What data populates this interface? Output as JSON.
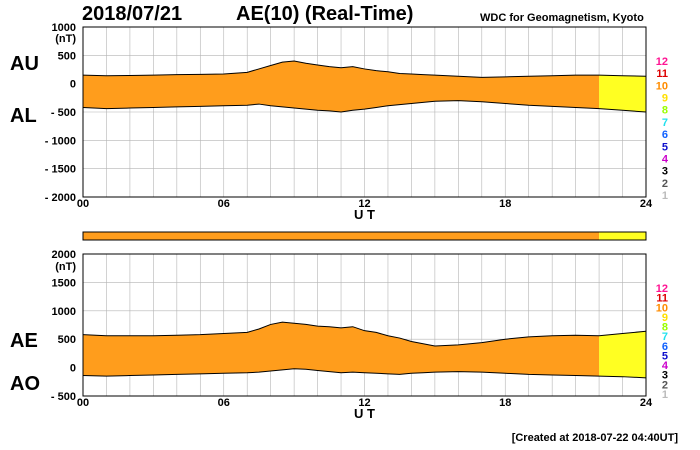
{
  "header": {
    "date": "2018/07/21",
    "title": "AE(10) (Real-Time)",
    "org": "WDC for Geomagnetism, Kyoto"
  },
  "footer": {
    "created": "[Created at 2018-07-22 04:40UT]"
  },
  "colors": {
    "orange": "#ff9d1c",
    "yellow": "#ffff22",
    "grid": "#b4b4b4",
    "frame": "#000000",
    "trace": "#000000"
  },
  "scale_legend": [
    {
      "label": "12",
      "color": "#ff1493"
    },
    {
      "label": "11",
      "color": "#dd0000"
    },
    {
      "label": "10",
      "color": "#ff8c00"
    },
    {
      "label": "9",
      "color": "#ffe000"
    },
    {
      "label": "8",
      "color": "#99ff00"
    },
    {
      "label": "7",
      "color": "#22e0ee"
    },
    {
      "label": "6",
      "color": "#1060ff"
    },
    {
      "label": "5",
      "color": "#1010cc"
    },
    {
      "label": "4",
      "color": "#cc00cc"
    },
    {
      "label": "3",
      "color": "#000000"
    },
    {
      "label": "2",
      "color": "#555555"
    },
    {
      "label": "1",
      "color": "#bbbbbb"
    }
  ],
  "chart_data": [
    {
      "type": "area",
      "panel": "top",
      "upper_label": "AU",
      "lower_label": "AL",
      "ylabel": "(nT)",
      "xlabel": "U T",
      "xlim": [
        0,
        24
      ],
      "ylim": [
        -2000,
        1000
      ],
      "xticks": [
        "00",
        "06",
        "12",
        "18",
        "24"
      ],
      "yticks": [
        "1000",
        "500",
        "0",
        "- 500",
        "- 1000",
        "- 1500",
        "- 2000"
      ],
      "grid": true,
      "x": [
        0,
        1,
        2,
        3,
        4,
        5,
        6,
        7,
        7.5,
        8,
        8.5,
        9,
        9.5,
        10,
        10.5,
        11,
        11.5,
        12,
        12.5,
        13,
        13.5,
        14,
        14.5,
        15,
        16,
        17,
        18,
        19,
        20,
        21,
        22,
        23,
        24
      ],
      "series": [
        {
          "name": "AU",
          "values": [
            150,
            140,
            145,
            150,
            160,
            165,
            170,
            200,
            260,
            320,
            380,
            400,
            360,
            330,
            300,
            280,
            300,
            260,
            230,
            210,
            180,
            170,
            160,
            150,
            130,
            110,
            120,
            130,
            140,
            150,
            150,
            140,
            130
          ]
        },
        {
          "name": "AL",
          "values": [
            -420,
            -440,
            -430,
            -420,
            -410,
            -400,
            -390,
            -380,
            -360,
            -390,
            -410,
            -430,
            -450,
            -470,
            -480,
            -500,
            -470,
            -450,
            -420,
            -390,
            -370,
            -350,
            -330,
            -310,
            -300,
            -320,
            -350,
            -380,
            -400,
            -420,
            -440,
            -470,
            -500
          ]
        }
      ],
      "forecast_from": 22
    },
    {
      "type": "area",
      "panel": "bottom",
      "upper_label": "AE",
      "lower_label": "AO",
      "ylabel": "(nT)",
      "xlabel": "U T",
      "xlim": [
        0,
        24
      ],
      "ylim": [
        -500,
        2000
      ],
      "xticks": [
        "00",
        "06",
        "12",
        "18",
        "24"
      ],
      "yticks": [
        "2000",
        "1500",
        "1000",
        "500",
        "0",
        "- 500"
      ],
      "grid": true,
      "x": [
        0,
        1,
        2,
        3,
        4,
        5,
        6,
        7,
        7.5,
        8,
        8.5,
        9,
        9.5,
        10,
        10.5,
        11,
        11.5,
        12,
        12.5,
        13,
        13.5,
        14,
        14.5,
        15,
        16,
        17,
        18,
        19,
        20,
        21,
        22,
        23,
        24
      ],
      "series": [
        {
          "name": "AE",
          "values": [
            580,
            560,
            560,
            560,
            570,
            580,
            600,
            620,
            680,
            760,
            800,
            780,
            760,
            730,
            720,
            700,
            720,
            650,
            620,
            560,
            520,
            460,
            420,
            380,
            400,
            440,
            500,
            540,
            560,
            570,
            560,
            600,
            640
          ]
        },
        {
          "name": "AO",
          "values": [
            -140,
            -150,
            -140,
            -130,
            -120,
            -110,
            -100,
            -90,
            -80,
            -60,
            -40,
            -20,
            -30,
            -50,
            -70,
            -90,
            -80,
            -90,
            -100,
            -110,
            -120,
            -100,
            -90,
            -80,
            -70,
            -80,
            -100,
            -120,
            -130,
            -140,
            -150,
            -160,
            -180
          ]
        }
      ],
      "forecast_from": 22
    }
  ]
}
